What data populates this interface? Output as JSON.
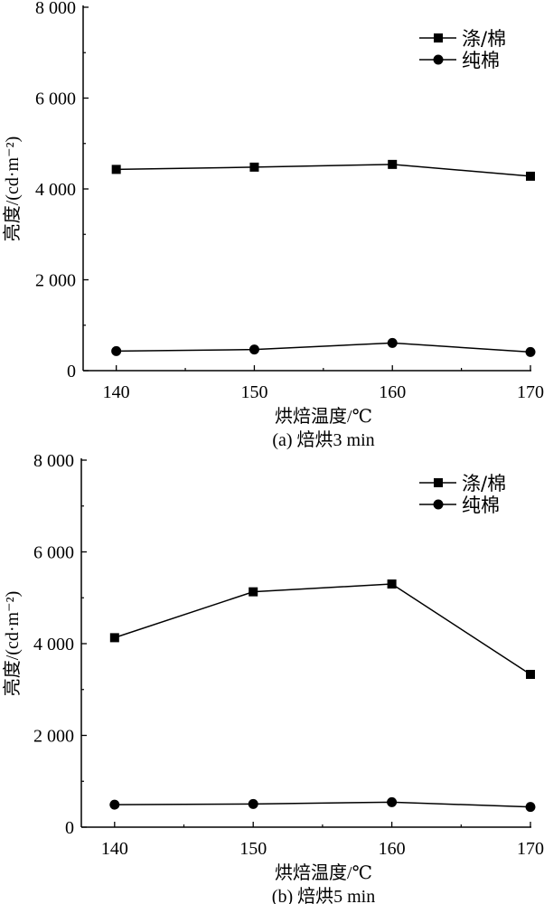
{
  "chart_data": [
    {
      "type": "line",
      "caption": "(a) 焙烘3 min",
      "xlabel": "烘焙温度/℃",
      "ylabel": "亮度/(cd·m⁻²)",
      "x": [
        140,
        150,
        160,
        170
      ],
      "xticks": [
        "140",
        "150",
        "160",
        "170"
      ],
      "yticks": [
        "0",
        "2 000",
        "4 000",
        "6 000",
        "8 000"
      ],
      "ytick_values": [
        0,
        2000,
        4000,
        6000,
        8000
      ],
      "ylim": [
        0,
        8000
      ],
      "xlim": [
        137.6,
        170
      ],
      "grid": false,
      "legend_position": "top-right",
      "series": [
        {
          "name": "涤/棉",
          "marker": "square",
          "values": [
            4430,
            4480,
            4540,
            4280
          ]
        },
        {
          "name": "纯棉",
          "marker": "circle",
          "values": [
            430,
            465,
            610,
            410
          ]
        }
      ]
    },
    {
      "type": "line",
      "caption": "(b) 焙烘5 min",
      "xlabel": "烘焙温度/℃",
      "ylabel": "亮度/(cd·m⁻²)",
      "x": [
        140,
        150,
        160,
        170
      ],
      "xticks": [
        "140",
        "150",
        "160",
        "170"
      ],
      "yticks": [
        "0",
        "2 000",
        "4 000",
        "6 000",
        "8 000"
      ],
      "ytick_values": [
        0,
        2000,
        4000,
        6000,
        8000
      ],
      "ylim": [
        0,
        8000
      ],
      "xlim": [
        137.6,
        170
      ],
      "grid": false,
      "legend_position": "top-right",
      "series": [
        {
          "name": "涤/棉",
          "marker": "square",
          "values": [
            4130,
            5130,
            5300,
            3330
          ]
        },
        {
          "name": "纯棉",
          "marker": "circle",
          "values": [
            490,
            505,
            545,
            440
          ]
        }
      ]
    }
  ]
}
